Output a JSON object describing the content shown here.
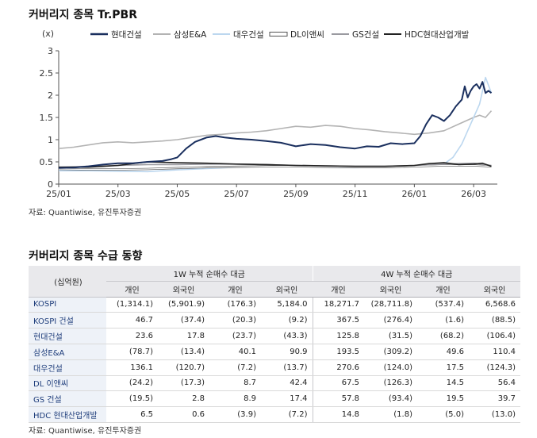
{
  "chart": {
    "title": "커버리지 종목 Tr.PBR",
    "source": "자료: Quantiwise, 유진투자증권"
  },
  "chart_data": {
    "type": "line",
    "title": "커버리지 종목 Tr.PBR",
    "ylabel": "(x)",
    "ylim": [
      0,
      3
    ],
    "yticks": [
      0,
      0.5,
      1,
      1.5,
      2,
      2.5,
      3
    ],
    "xlim": [
      0,
      14.8
    ],
    "xticks": [
      {
        "pos": 0,
        "label": "25/01"
      },
      {
        "pos": 2,
        "label": "25/03"
      },
      {
        "pos": 4,
        "label": "25/05"
      },
      {
        "pos": 6,
        "label": "25/07"
      },
      {
        "pos": 8,
        "label": "25/09"
      },
      {
        "pos": 10,
        "label": "25/11"
      },
      {
        "pos": 12,
        "label": "26/01"
      },
      {
        "pos": 14,
        "label": "26/03"
      }
    ],
    "legend_position": "top",
    "series": [
      {
        "name": "현대건설",
        "color": "#1a2f5e",
        "width": 2,
        "x": [
          0,
          0.5,
          1,
          1.5,
          2,
          2.5,
          3,
          3.5,
          3.8,
          4,
          4.3,
          4.6,
          5,
          5.3,
          5.6,
          6,
          6.5,
          7,
          7.5,
          8,
          8.5,
          9,
          9.5,
          10,
          10.4,
          10.8,
          11.2,
          11.6,
          12,
          12.2,
          12.4,
          12.6,
          12.8,
          13.0,
          13.2,
          13.4,
          13.6,
          13.7,
          13.8,
          13.9,
          14.0,
          14.1,
          14.2,
          14.3,
          14.4,
          14.5,
          14.6
        ],
        "values": [
          0.36,
          0.37,
          0.4,
          0.44,
          0.47,
          0.47,
          0.5,
          0.52,
          0.56,
          0.6,
          0.8,
          0.95,
          1.05,
          1.08,
          1.05,
          1.02,
          1.0,
          0.97,
          0.93,
          0.85,
          0.9,
          0.88,
          0.83,
          0.8,
          0.85,
          0.84,
          0.92,
          0.9,
          0.92,
          1.08,
          1.35,
          1.55,
          1.5,
          1.42,
          1.55,
          1.75,
          1.9,
          2.2,
          1.95,
          2.1,
          2.2,
          2.25,
          2.15,
          2.3,
          2.05,
          2.1,
          2.05
        ]
      },
      {
        "name": "삼성E&A",
        "color": "#b3b3b3",
        "width": 1.6,
        "x": [
          0,
          0.5,
          1,
          1.5,
          2,
          2.5,
          3,
          3.5,
          4,
          4.5,
          5,
          5.5,
          6,
          6.5,
          7,
          7.5,
          8,
          8.5,
          9,
          9.5,
          10,
          10.5,
          11,
          11.5,
          12,
          12.5,
          13,
          13.5,
          14,
          14.2,
          14.4,
          14.6
        ],
        "values": [
          0.8,
          0.83,
          0.88,
          0.93,
          0.95,
          0.93,
          0.95,
          0.97,
          1.0,
          1.05,
          1.1,
          1.12,
          1.15,
          1.17,
          1.2,
          1.25,
          1.3,
          1.28,
          1.32,
          1.3,
          1.25,
          1.22,
          1.18,
          1.15,
          1.12,
          1.15,
          1.2,
          1.35,
          1.5,
          1.55,
          1.5,
          1.65
        ]
      },
      {
        "name": "대우건설",
        "color": "#bcd7ef",
        "width": 1.6,
        "x": [
          0,
          1,
          2,
          3,
          4,
          5,
          6,
          7,
          8,
          9,
          10,
          11,
          12,
          12.5,
          13,
          13.3,
          13.6,
          13.8,
          14.0,
          14.2,
          14.4,
          14.6
        ],
        "values": [
          0.3,
          0.3,
          0.29,
          0.28,
          0.32,
          0.35,
          0.38,
          0.4,
          0.4,
          0.38,
          0.37,
          0.38,
          0.4,
          0.42,
          0.45,
          0.6,
          0.9,
          1.2,
          1.5,
          1.8,
          2.4,
          2.05
        ]
      },
      {
        "name": "DL이앤씨",
        "color": "#ffffff",
        "stroke": "#555555",
        "width": 1.2,
        "x": [
          0,
          1,
          2,
          3,
          4,
          5,
          6,
          7,
          8,
          9,
          10,
          11,
          12,
          13,
          14,
          14.6
        ],
        "values": [
          0.34,
          0.33,
          0.33,
          0.34,
          0.36,
          0.38,
          0.39,
          0.4,
          0.4,
          0.39,
          0.38,
          0.38,
          0.4,
          0.42,
          0.42,
          0.4
        ]
      },
      {
        "name": "GS건설",
        "color": "#9a9aa0",
        "width": 1.6,
        "x": [
          0,
          1,
          2,
          3,
          4,
          5,
          6,
          7,
          8,
          9,
          10,
          11,
          12,
          13,
          14,
          14.6
        ],
        "values": [
          0.38,
          0.4,
          0.42,
          0.44,
          0.44,
          0.45,
          0.45,
          0.44,
          0.42,
          0.41,
          0.4,
          0.4,
          0.42,
          0.45,
          0.47,
          0.42
        ]
      },
      {
        "name": "HDC현대산업개발",
        "color": "#222222",
        "width": 1.6,
        "x": [
          0,
          1,
          2,
          3,
          4,
          5,
          6,
          7,
          8,
          9,
          10,
          11,
          12,
          12.5,
          13,
          13.5,
          14,
          14.3,
          14.6
        ],
        "values": [
          0.38,
          0.38,
          0.42,
          0.5,
          0.48,
          0.47,
          0.45,
          0.44,
          0.42,
          0.41,
          0.4,
          0.4,
          0.42,
          0.46,
          0.48,
          0.44,
          0.45,
          0.47,
          0.4
        ]
      }
    ]
  },
  "table": {
    "title": "커버리지 종목 수급 동향",
    "source": "자료: Quantiwise, 유진투자증권",
    "corner": "(십억원)",
    "group1": "1W 누적 순매수 대금",
    "group2": "4W 누적 순매수 대금",
    "subheaders": [
      "개인",
      "외국인",
      "개인",
      "외국인",
      "개인",
      "외국인",
      "개인",
      "외국인"
    ],
    "rows": [
      {
        "label": "KOSPI",
        "values": [
          "(1,314.1)",
          "(5,901.9)",
          "(176.3)",
          "5,184.0",
          "18,271.7",
          "(28,711.8)",
          "(537.4)",
          "6,568.6"
        ]
      },
      {
        "label": "KOSPI 건설",
        "values": [
          "46.7",
          "(37.4)",
          "(20.3)",
          "(9.2)",
          "367.5",
          "(276.4)",
          "(1.6)",
          "(88.5)"
        ]
      },
      {
        "label": "현대건설",
        "values": [
          "23.6",
          "17.8",
          "(23.7)",
          "(43.3)",
          "125.8",
          "(31.5)",
          "(68.2)",
          "(106.4)"
        ]
      },
      {
        "label": "삼성E&A",
        "values": [
          "(78.7)",
          "(13.4)",
          "40.1",
          "90.9",
          "193.5",
          "(309.2)",
          "49.6",
          "110.4"
        ]
      },
      {
        "label": "대우건설",
        "values": [
          "136.1",
          "(120.7)",
          "(7.2)",
          "(13.7)",
          "270.6",
          "(124.0)",
          "17.5",
          "(124.3)"
        ]
      },
      {
        "label": "DL 이앤씨",
        "values": [
          "(24.2)",
          "(17.3)",
          "8.7",
          "42.4",
          "67.5",
          "(126.3)",
          "14.5",
          "56.4"
        ]
      },
      {
        "label": "GS 건설",
        "values": [
          "(19.5)",
          "2.8",
          "8.9",
          "17.4",
          "57.8",
          "(93.4)",
          "19.5",
          "39.7"
        ]
      },
      {
        "label": "HDC 현대산업개발",
        "values": [
          "6.5",
          "0.6",
          "(3.9)",
          "(7.2)",
          "14.8",
          "(1.8)",
          "(5.0)",
          "(13.0)"
        ]
      }
    ]
  }
}
